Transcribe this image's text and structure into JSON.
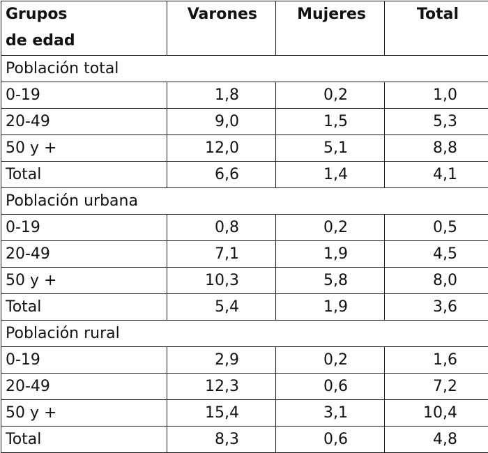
{
  "table": {
    "headers": {
      "group_line1": "Grupos",
      "group_line2": "de edad",
      "men": "Varones",
      "women": "Mujeres",
      "total": "Total"
    },
    "sections": [
      {
        "title": "Población total",
        "rows": [
          {
            "group": "0-19",
            "men": "1,8",
            "women": "0,2",
            "total": "1,0"
          },
          {
            "group": "20-49",
            "men": "9,0",
            "women": "1,5",
            "total": "5,3"
          },
          {
            "group": "50 y +",
            "men": "12,0",
            "women": "5,1",
            "total": "8,8"
          },
          {
            "group": "Total",
            "men": "6,6",
            "women": "1,4",
            "total": "4,1"
          }
        ]
      },
      {
        "title": "Población urbana",
        "rows": [
          {
            "group": "0-19",
            "men": "0,8",
            "women": "0,2",
            "total": "0,5"
          },
          {
            "group": "20-49",
            "men": "7,1",
            "women": "1,9",
            "total": "4,5"
          },
          {
            "group": "50 y +",
            "men": "10,3",
            "women": "5,8",
            "total": "8,0"
          },
          {
            "group": "Total",
            "men": "5,4",
            "women": "1,9",
            "total": "3,6"
          }
        ]
      },
      {
        "title": "Población rural",
        "rows": [
          {
            "group": "0-19",
            "men": "2,9",
            "women": "0,2",
            "total": "1,6"
          },
          {
            "group": "20-49",
            "men": "12,3",
            "women": "0,6",
            "total": "7,2"
          },
          {
            "group": "50 y +",
            "men": "15,4",
            "women": "3,1",
            "total": "10,4"
          },
          {
            "group": "Total",
            "men": "8,3",
            "women": "0,6",
            "total": "4,8"
          }
        ]
      }
    ]
  }
}
